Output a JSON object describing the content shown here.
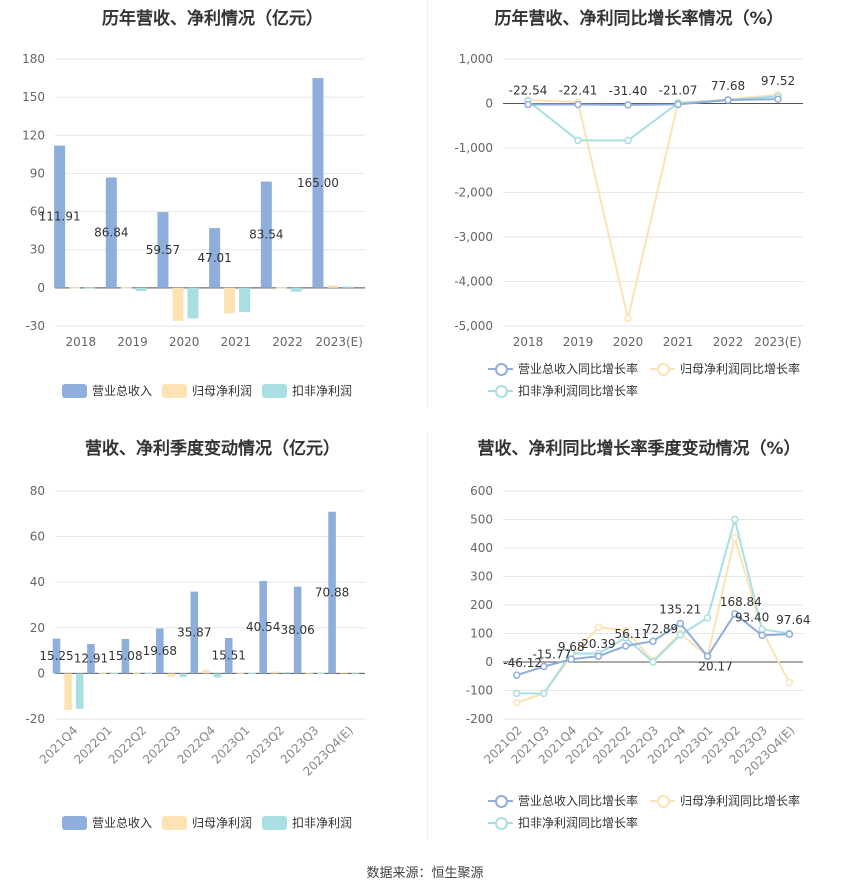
{
  "footer": {
    "source": "数据来源：恒生聚源"
  },
  "colors": {
    "revenue": "#8eaedc",
    "net_profit": "#fde3b4",
    "deducted_profit": "#a8dfe3",
    "rev_growth": "#8eaedc",
    "np_growth": "#fde3b4",
    "dp_growth": "#a8dfe3"
  },
  "panels": [
    {
      "title": "历年营收、净利情况（亿元）",
      "legend": [
        "营业总收入",
        "归母净利润",
        "扣非净利润"
      ]
    },
    {
      "title": "历年营收、净利同比增长率情况（%）",
      "legend": [
        "营业总收入同比增长率",
        "归母净利润同比增长率",
        "扣非净利润同比增长率"
      ]
    },
    {
      "title": "营收、净利季度变动情况（亿元）",
      "legend": [
        "营业总收入",
        "归母净利润",
        "扣非净利润"
      ]
    },
    {
      "title": "营收、净利同比增长率季度变动情况（%）",
      "legend": [
        "营业总收入同比增长率",
        "归母净利润同比增长率",
        "扣非净利润同比增长率"
      ]
    }
  ],
  "chart_data": [
    {
      "type": "bar",
      "categories": [
        "2018",
        "2019",
        "2020",
        "2021",
        "2022",
        "2023(E)"
      ],
      "ylim": [
        -30,
        180
      ],
      "yticks": [
        -30,
        0,
        30,
        60,
        90,
        120,
        150,
        180
      ],
      "series": [
        {
          "name": "营业总收入",
          "values": [
            111.91,
            86.84,
            59.57,
            47.01,
            83.54,
            165.0
          ],
          "labels": [
            "111.91",
            "86.84",
            "59.57",
            "47.01",
            "83.54",
            "165.00"
          ]
        },
        {
          "name": "归母净利润",
          "values": [
            0.3,
            0.3,
            -26,
            -20,
            0.3,
            2
          ]
        },
        {
          "name": "扣非净利润",
          "values": [
            0.2,
            -2.5,
            -24,
            -19,
            -3,
            1
          ]
        }
      ]
    },
    {
      "type": "line",
      "categories": [
        "2018",
        "2019",
        "2020",
        "2021",
        "2022",
        "2023(E)"
      ],
      "ylim": [
        -5000,
        1000
      ],
      "yticks": [
        -5000,
        -4000,
        -3000,
        -2000,
        -1000,
        0,
        1000
      ],
      "ytick_labels": [
        "-5,000",
        "-4,000",
        "-3,000",
        "-2,000",
        "-1,000",
        "0",
        "1,000"
      ],
      "series": [
        {
          "name": "营业总收入同比增长率",
          "values": [
            -22.54,
            -22.41,
            -31.4,
            -21.07,
            77.68,
            97.52
          ],
          "labels": [
            "-22.54",
            "-22.41",
            "-31.40",
            "-21.07",
            "77.68",
            "97.52"
          ]
        },
        {
          "name": "归母净利润同比增长率",
          "values": [
            80,
            30,
            -4830,
            20,
            90,
            200
          ]
        },
        {
          "name": "扣非净利润同比增长率",
          "values": [
            60,
            -830,
            -830,
            10,
            80,
            160
          ]
        }
      ]
    },
    {
      "type": "bar",
      "categories": [
        "2021Q4",
        "2022Q1",
        "2022Q2",
        "2022Q3",
        "2022Q4",
        "2023Q1",
        "2023Q2",
        "2023Q3",
        "2023Q4(E)"
      ],
      "ylim": [
        -20,
        80
      ],
      "yticks": [
        -20,
        0,
        20,
        40,
        60,
        80
      ],
      "series": [
        {
          "name": "营业总收入",
          "values": [
            15.25,
            12.91,
            15.08,
            19.68,
            35.87,
            15.51,
            40.54,
            38.06,
            70.88
          ],
          "labels": [
            "15.25",
            "12.91",
            "15.08",
            "19.68",
            "35.87",
            "15.51",
            "40.54",
            "38.06",
            "70.88"
          ]
        },
        {
          "name": "归母净利润",
          "values": [
            -16,
            0.3,
            0.3,
            -1.5,
            1.5,
            0.3,
            0.8,
            0.3,
            0.5
          ]
        },
        {
          "name": "扣非净利润",
          "values": [
            -15.5,
            0.2,
            0.2,
            -1.5,
            -1.8,
            0.2,
            0.5,
            0.2,
            0.3
          ]
        }
      ]
    },
    {
      "type": "line",
      "categories": [
        "2021Q2",
        "2021Q3",
        "2021Q4",
        "2022Q1",
        "2022Q2",
        "2022Q3",
        "2022Q4",
        "2023Q1",
        "2023Q2",
        "2023Q3",
        "2023Q4(E)"
      ],
      "ylim": [
        -200,
        600
      ],
      "yticks": [
        -200,
        -100,
        0,
        100,
        200,
        300,
        400,
        500,
        600
      ],
      "series": [
        {
          "name": "营业总收入同比增长率",
          "values": [
            -46.12,
            -15.77,
            9.68,
            20.39,
            56.11,
            72.89,
            135.21,
            20.17,
            168.84,
            93.4,
            97.64
          ],
          "labels": [
            "-46.12",
            "-15.77",
            "9.68",
            "20.39",
            "56.11",
            "72.89",
            "135.21",
            "20.17",
            "168.84",
            "93.40",
            "97.64"
          ]
        },
        {
          "name": "归母净利润同比增长率",
          "values": [
            -143,
            -110,
            20,
            122,
            110,
            5,
            100,
            20,
            435,
            110,
            -72
          ]
        },
        {
          "name": "扣非净利润同比增长率",
          "values": [
            -110,
            -110,
            30,
            30,
            85,
            0,
            95,
            155,
            500,
            115,
            100
          ]
        }
      ]
    }
  ]
}
